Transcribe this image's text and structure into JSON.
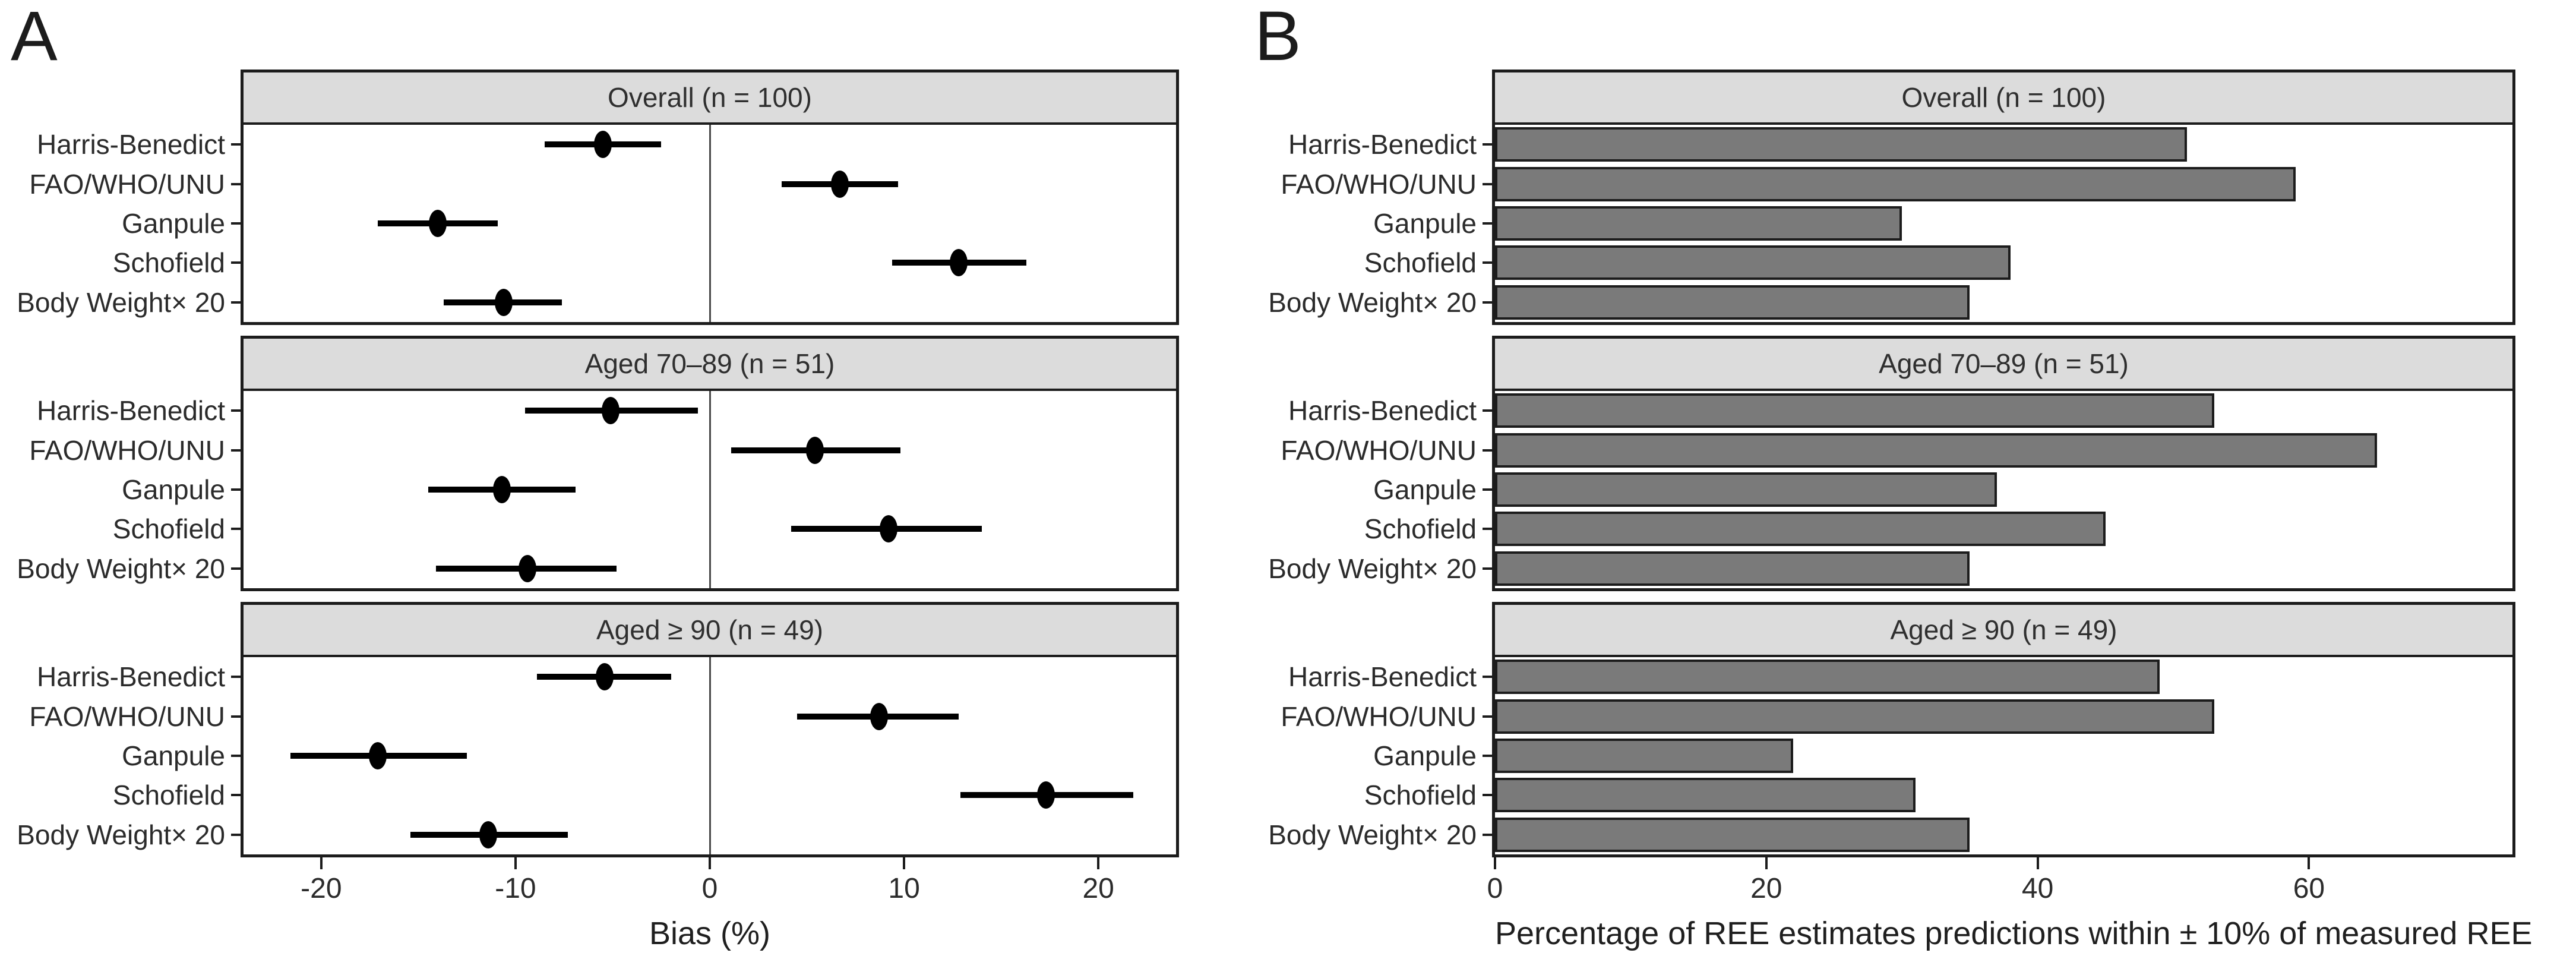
{
  "figure": {
    "background": "#ffffff",
    "ink_color": "#1c1c1c",
    "text_color": "#2b2b2b",
    "header_fill": "#dcdcdc",
    "bar_fill": "#7a7a7a"
  },
  "chart_data": [
    {
      "type": "scatter",
      "panel_label": "A",
      "xlabel": "Bias (%)",
      "xlim": [
        -24,
        24
      ],
      "xticks": [
        -20,
        -10,
        0,
        10,
        20
      ],
      "reference_line_x": 0,
      "grid": false,
      "legend": "none",
      "categories": [
        "Harris-Benedict",
        "FAO/WHO/UNU",
        "Ganpule",
        "Schofield",
        "Body Weight× 20"
      ],
      "facets": [
        {
          "title": "Overall (n = 100)",
          "points": [
            {
              "category": "Harris-Benedict",
              "mean": -5.5,
              "ci_low": -8.5,
              "ci_high": -2.5
            },
            {
              "category": "FAO/WHO/UNU",
              "mean": 6.7,
              "ci_low": 3.7,
              "ci_high": 9.7
            },
            {
              "category": "Ganpule",
              "mean": -14.0,
              "ci_low": -17.1,
              "ci_high": -10.9
            },
            {
              "category": "Schofield",
              "mean": 12.8,
              "ci_low": 9.4,
              "ci_high": 16.3
            },
            {
              "category": "Body Weight× 20",
              "mean": -10.6,
              "ci_low": -13.7,
              "ci_high": -7.6
            }
          ]
        },
        {
          "title": "Aged 70–89 (n = 51)",
          "points": [
            {
              "category": "Harris-Benedict",
              "mean": -5.1,
              "ci_low": -9.5,
              "ci_high": -0.6
            },
            {
              "category": "FAO/WHO/UNU",
              "mean": 5.4,
              "ci_low": 1.1,
              "ci_high": 9.8
            },
            {
              "category": "Ganpule",
              "mean": -10.7,
              "ci_low": -14.5,
              "ci_high": -6.9
            },
            {
              "category": "Schofield",
              "mean": 9.2,
              "ci_low": 4.2,
              "ci_high": 14.0
            },
            {
              "category": "Body Weight× 20",
              "mean": -9.4,
              "ci_low": -14.1,
              "ci_high": -4.8
            }
          ]
        },
        {
          "title": "Aged ≥ 90 (n = 49)",
          "points": [
            {
              "category": "Harris-Benedict",
              "mean": -5.4,
              "ci_low": -8.9,
              "ci_high": -2.0
            },
            {
              "category": "FAO/WHO/UNU",
              "mean": 8.7,
              "ci_low": 4.5,
              "ci_high": 12.8
            },
            {
              "category": "Ganpule",
              "mean": -17.1,
              "ci_low": -21.6,
              "ci_high": -12.5
            },
            {
              "category": "Schofield",
              "mean": 17.3,
              "ci_low": 12.9,
              "ci_high": 21.8
            },
            {
              "category": "Body Weight× 20",
              "mean": -11.4,
              "ci_low": -15.4,
              "ci_high": -7.3
            }
          ]
        }
      ]
    },
    {
      "type": "bar",
      "panel_label": "B",
      "orientation": "horizontal",
      "xlabel": "Percentage of REE estimates predictions within ± 10% of measured REE",
      "xlim": [
        0,
        75
      ],
      "xticks": [
        0,
        20,
        40,
        60
      ],
      "grid": false,
      "legend": "none",
      "categories": [
        "Harris-Benedict",
        "FAO/WHO/UNU",
        "Ganpule",
        "Schofield",
        "Body Weight× 20"
      ],
      "facets": [
        {
          "title": "Overall (n = 100)",
          "values": [
            51,
            59,
            30,
            38,
            35
          ]
        },
        {
          "title": "Aged 70–89 (n = 51)",
          "values": [
            53,
            65,
            37,
            45,
            35
          ]
        },
        {
          "title": "Aged ≥ 90 (n = 49)",
          "values": [
            49,
            53,
            22,
            31,
            35
          ]
        }
      ]
    }
  ]
}
